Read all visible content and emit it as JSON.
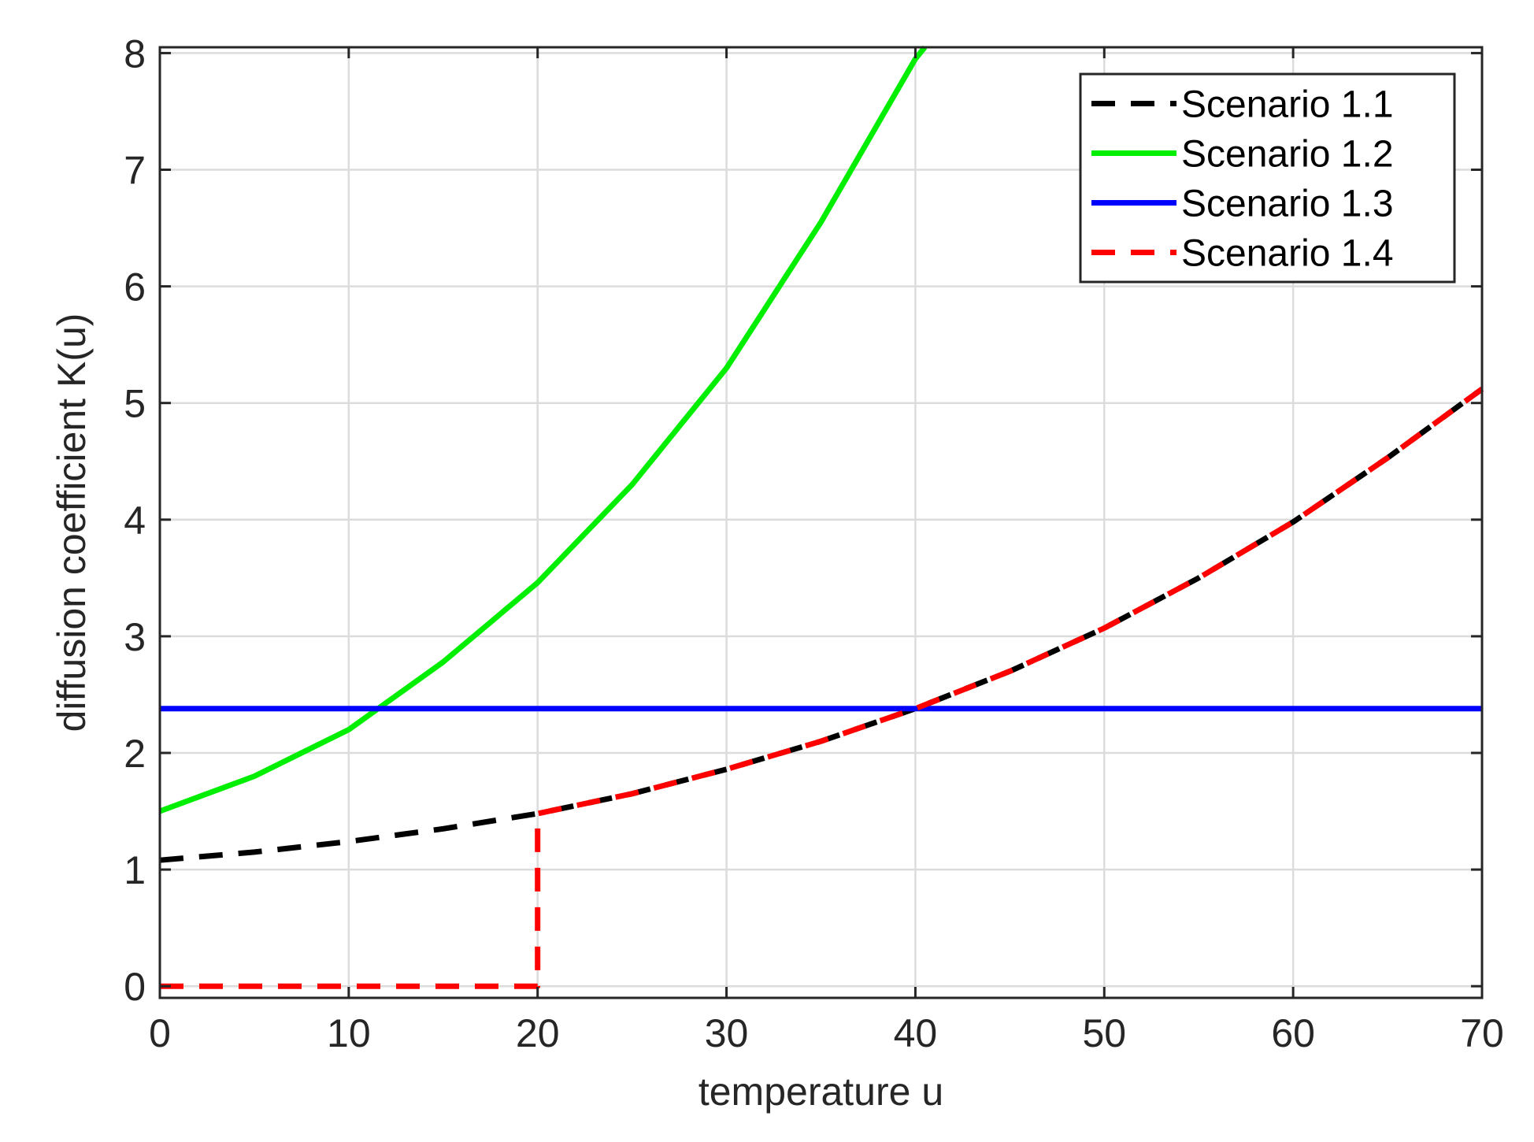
{
  "chart_data": {
    "type": "line",
    "xlabel": "temperature u",
    "ylabel": "diffusion coefficient K(u)",
    "xlim": [
      0,
      70
    ],
    "ylim": [
      -0.1,
      8.05
    ],
    "x_ticks": [
      0,
      10,
      20,
      30,
      40,
      50,
      60,
      70
    ],
    "y_ticks": [
      0,
      1,
      2,
      3,
      4,
      5,
      6,
      7,
      8
    ],
    "grid": true,
    "legend_position": "top-right",
    "series": [
      {
        "name": "Scenario 1.1",
        "color": "#000000",
        "style": "dashed",
        "x": [
          0,
          5,
          10,
          15,
          20,
          25,
          30,
          35,
          40,
          45,
          50,
          55,
          60,
          65,
          70
        ],
        "y": [
          1.08,
          1.15,
          1.24,
          1.35,
          1.48,
          1.65,
          1.86,
          2.1,
          2.38,
          2.7,
          3.07,
          3.5,
          3.98,
          4.53,
          5.12
        ]
      },
      {
        "name": "Scenario 1.2",
        "color": "#00ee00",
        "style": "solid",
        "x": [
          0,
          5,
          10,
          15,
          20,
          25,
          30,
          35,
          40,
          40.5
        ],
        "y": [
          1.5,
          1.8,
          2.2,
          2.78,
          3.46,
          4.3,
          5.3,
          6.55,
          7.95,
          8.05
        ]
      },
      {
        "name": "Scenario 1.3",
        "color": "#0000ff",
        "style": "solid",
        "x": [
          0,
          70
        ],
        "y": [
          2.38,
          2.38
        ]
      },
      {
        "name": "Scenario 1.4",
        "color": "#ff0000",
        "style": "dashed",
        "x": [
          0,
          20,
          20,
          25,
          30,
          35,
          40,
          45,
          50,
          55,
          60,
          65,
          70
        ],
        "y": [
          0,
          0,
          1.48,
          1.65,
          1.86,
          2.1,
          2.38,
          2.7,
          3.07,
          3.5,
          3.98,
          4.53,
          5.12
        ]
      }
    ]
  }
}
